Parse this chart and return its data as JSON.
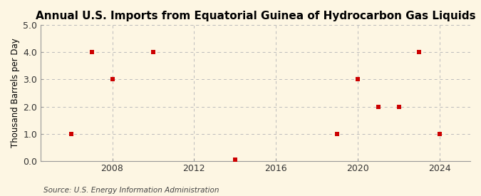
{
  "title": "Annual U.S. Imports from Equatorial Guinea of Hydrocarbon Gas Liquids",
  "ylabel": "Thousand Barrels per Day",
  "source": "Source: U.S. Energy Information Administration",
  "background_color": "#fdf6e3",
  "data_points": [
    [
      2006,
      1.0
    ],
    [
      2007,
      4.0
    ],
    [
      2008,
      3.0
    ],
    [
      2010,
      4.0
    ],
    [
      2014,
      0.04
    ],
    [
      2019,
      1.0
    ],
    [
      2020,
      3.0
    ],
    [
      2021,
      2.0
    ],
    [
      2022,
      2.0
    ],
    [
      2023,
      4.0
    ],
    [
      2024,
      1.0
    ]
  ],
  "xlim": [
    2004.5,
    2025.5
  ],
  "ylim": [
    0.0,
    5.0
  ],
  "xticks": [
    2008,
    2012,
    2016,
    2020,
    2024
  ],
  "yticks": [
    0.0,
    1.0,
    2.0,
    3.0,
    4.0,
    5.0
  ],
  "marker_color": "#cc0000",
  "marker_size": 18,
  "grid_color": "#bbbbbb",
  "title_fontsize": 11,
  "label_fontsize": 8.5,
  "tick_fontsize": 9,
  "source_fontsize": 7.5
}
